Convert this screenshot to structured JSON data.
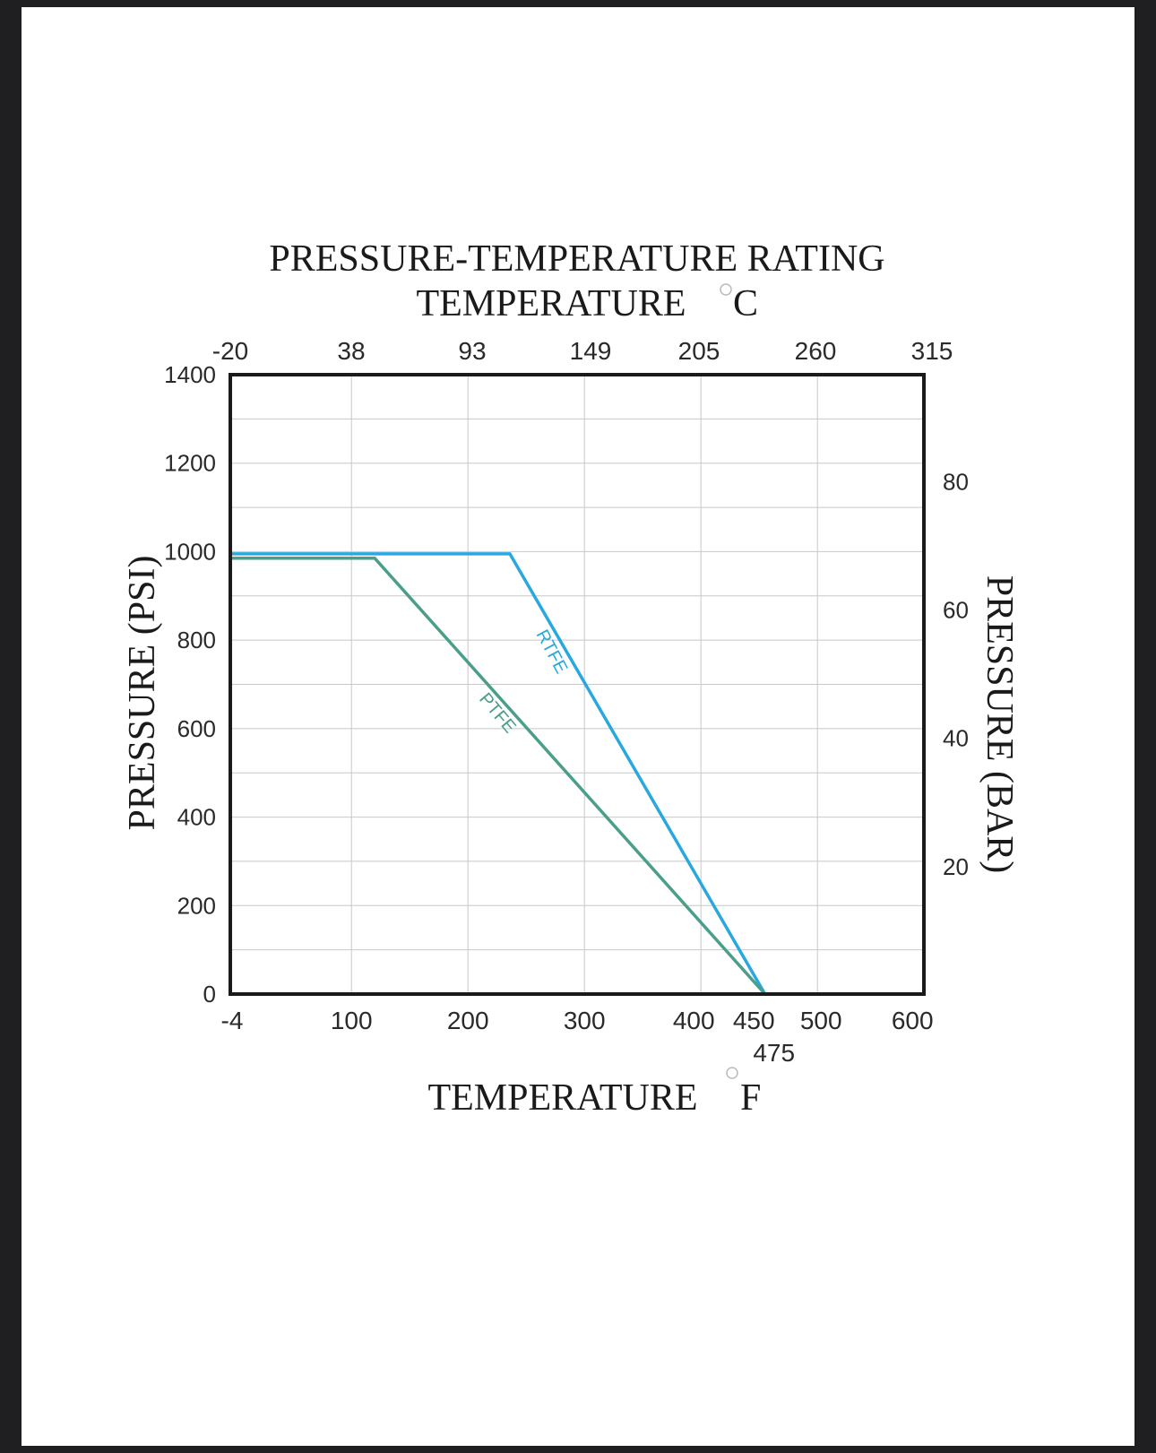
{
  "chart_data": {
    "type": "line",
    "title": "PRESSURE-TEMPERATURE RATING",
    "top_axis_label": "TEMPERATURE",
    "top_axis_unit": "C",
    "xlabel": "TEMPERATURE",
    "xlabel_unit": "F",
    "ylabel": "PRESSURE (PSI)",
    "y2label": "PRESSURE (BAR)",
    "xlim": [
      -4,
      600
    ],
    "ylim": [
      0,
      1400
    ],
    "x_ticks": [
      "-4",
      "100",
      "200",
      "300",
      "400",
      "450",
      "500",
      "600"
    ],
    "x_extra_tick": "475",
    "top_ticks": [
      "-20",
      "38",
      "93",
      "149",
      "205",
      "260",
      "315"
    ],
    "y_ticks": [
      "0",
      "200",
      "400",
      "600",
      "800",
      "1000",
      "1200",
      "1400"
    ],
    "y2_ticks": [
      "20",
      "40",
      "60",
      "80"
    ],
    "grid": true,
    "series": [
      {
        "name": "RTFE",
        "color": "#29a8e0",
        "x": [
          -4,
          236,
          455
        ],
        "y": [
          995,
          995,
          0
        ]
      },
      {
        "name": "PTFE",
        "color": "#4a9e8a",
        "x": [
          -4,
          120,
          455
        ],
        "y": [
          985,
          985,
          0
        ]
      }
    ]
  }
}
